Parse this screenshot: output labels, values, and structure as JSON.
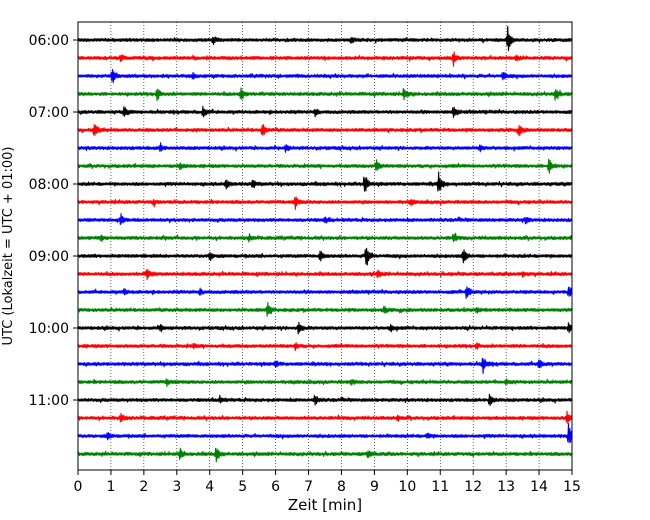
{
  "chart_data": {
    "type": "line",
    "title": "",
    "xlabel": "Zeit  [min]",
    "ylabel": "UTC (Lokalzeit = UTC + 01:00)",
    "xlim": [
      0,
      15
    ],
    "x_ticks": [
      "0",
      "1",
      "2",
      "3",
      "4",
      "5",
      "6",
      "7",
      "8",
      "9",
      "10",
      "11",
      "12",
      "13",
      "14",
      "15"
    ],
    "y_tick_labels": [
      "06:00",
      "07:00",
      "08:00",
      "09:00",
      "10:00",
      "11:00"
    ],
    "grid_x": true,
    "grid_y": false,
    "legend": "none",
    "trace_interval_minutes": 15,
    "start_time": "06:00",
    "trace_colors": [
      "#000000",
      "#ff0000",
      "#0000ff",
      "#008000"
    ],
    "traces": [
      {
        "start": "06:00",
        "color": "#000000",
        "events": [
          {
            "t": 13.05,
            "amp": 1.0
          },
          {
            "t": 4.1,
            "amp": 0.3
          },
          {
            "t": 8.3,
            "amp": 0.25
          }
        ]
      },
      {
        "start": "06:15",
        "color": "#ff0000",
        "events": [
          {
            "t": 11.4,
            "amp": 0.55
          },
          {
            "t": 1.3,
            "amp": 0.25
          },
          {
            "t": 13.3,
            "amp": 0.25
          }
        ]
      },
      {
        "start": "06:30",
        "color": "#0000ff",
        "events": [
          {
            "t": 1.05,
            "amp": 0.55
          },
          {
            "t": 12.9,
            "amp": 0.3
          },
          {
            "t": 3.5,
            "amp": 0.2
          }
        ]
      },
      {
        "start": "06:45",
        "color": "#008000",
        "events": [
          {
            "t": 2.4,
            "amp": 0.5
          },
          {
            "t": 4.95,
            "amp": 0.55
          },
          {
            "t": 9.9,
            "amp": 0.5
          },
          {
            "t": 14.5,
            "amp": 0.55
          }
        ]
      },
      {
        "start": "07:00",
        "color": "#000000",
        "events": [
          {
            "t": 11.4,
            "amp": 0.6
          },
          {
            "t": 1.4,
            "amp": 0.35
          },
          {
            "t": 3.8,
            "amp": 0.45
          },
          {
            "t": 7.2,
            "amp": 0.3
          }
        ]
      },
      {
        "start": "07:15",
        "color": "#ff0000",
        "events": [
          {
            "t": 0.5,
            "amp": 0.65
          },
          {
            "t": 5.6,
            "amp": 0.6
          },
          {
            "t": 13.4,
            "amp": 0.4
          }
        ]
      },
      {
        "start": "07:30",
        "color": "#0000ff",
        "events": [
          {
            "t": 2.5,
            "amp": 0.3
          },
          {
            "t": 6.3,
            "amp": 0.25
          },
          {
            "t": 12.2,
            "amp": 0.2
          }
        ]
      },
      {
        "start": "07:45",
        "color": "#008000",
        "events": [
          {
            "t": 9.05,
            "amp": 0.55
          },
          {
            "t": 14.3,
            "amp": 0.7
          },
          {
            "t": 3.1,
            "amp": 0.25
          }
        ]
      },
      {
        "start": "08:00",
        "color": "#000000",
        "events": [
          {
            "t": 8.7,
            "amp": 0.9
          },
          {
            "t": 10.95,
            "amp": 0.8
          },
          {
            "t": 4.5,
            "amp": 0.4
          },
          {
            "t": 5.3,
            "amp": 0.3
          }
        ]
      },
      {
        "start": "08:15",
        "color": "#ff0000",
        "events": [
          {
            "t": 6.6,
            "amp": 0.45
          },
          {
            "t": 10.1,
            "amp": 0.2
          },
          {
            "t": 2.3,
            "amp": 0.2
          }
        ]
      },
      {
        "start": "08:30",
        "color": "#0000ff",
        "events": [
          {
            "t": 1.3,
            "amp": 0.45
          },
          {
            "t": 13.6,
            "amp": 0.25
          },
          {
            "t": 7.5,
            "amp": 0.2
          }
        ]
      },
      {
        "start": "08:45",
        "color": "#008000",
        "events": [
          {
            "t": 11.4,
            "amp": 0.35
          },
          {
            "t": 5.2,
            "amp": 0.25
          },
          {
            "t": 0.7,
            "amp": 0.2
          }
        ]
      },
      {
        "start": "09:00",
        "color": "#000000",
        "events": [
          {
            "t": 8.75,
            "amp": 1.0
          },
          {
            "t": 11.7,
            "amp": 0.65
          },
          {
            "t": 7.35,
            "amp": 0.45
          },
          {
            "t": 4.0,
            "amp": 0.35
          }
        ]
      },
      {
        "start": "09:15",
        "color": "#ff0000",
        "events": [
          {
            "t": 2.1,
            "amp": 0.4
          },
          {
            "t": 9.1,
            "amp": 0.25
          },
          {
            "t": 13.5,
            "amp": 0.2
          }
        ]
      },
      {
        "start": "09:30",
        "color": "#0000ff",
        "events": [
          {
            "t": 11.8,
            "amp": 0.55
          },
          {
            "t": 14.9,
            "amp": 0.5
          },
          {
            "t": 3.7,
            "amp": 0.25
          },
          {
            "t": 1.4,
            "amp": 0.2
          }
        ]
      },
      {
        "start": "09:45",
        "color": "#008000",
        "events": [
          {
            "t": 5.75,
            "amp": 0.55
          },
          {
            "t": 9.3,
            "amp": 0.25
          },
          {
            "t": 12.1,
            "amp": 0.2
          }
        ]
      },
      {
        "start": "10:00",
        "color": "#000000",
        "events": [
          {
            "t": 6.7,
            "amp": 0.5
          },
          {
            "t": 2.5,
            "amp": 0.25
          },
          {
            "t": 14.9,
            "amp": 0.4
          },
          {
            "t": 9.5,
            "amp": 0.25
          }
        ]
      },
      {
        "start": "10:15",
        "color": "#ff0000",
        "events": [
          {
            "t": 6.6,
            "amp": 0.25
          },
          {
            "t": 12.1,
            "amp": 0.2
          },
          {
            "t": 3.5,
            "amp": 0.15
          }
        ]
      },
      {
        "start": "10:30",
        "color": "#0000ff",
        "events": [
          {
            "t": 12.3,
            "amp": 0.7
          },
          {
            "t": 14.0,
            "amp": 0.45
          },
          {
            "t": 6.0,
            "amp": 0.25
          }
        ]
      },
      {
        "start": "10:45",
        "color": "#008000",
        "events": [
          {
            "t": 2.7,
            "amp": 0.25
          },
          {
            "t": 8.3,
            "amp": 0.2
          },
          {
            "t": 13.0,
            "amp": 0.2
          }
        ]
      },
      {
        "start": "11:00",
        "color": "#000000",
        "events": [
          {
            "t": 12.5,
            "amp": 0.5
          },
          {
            "t": 7.2,
            "amp": 0.4
          },
          {
            "t": 4.3,
            "amp": 0.25
          }
        ]
      },
      {
        "start": "11:15",
        "color": "#ff0000",
        "events": [
          {
            "t": 1.3,
            "amp": 0.35
          },
          {
            "t": 14.85,
            "amp": 0.5
          },
          {
            "t": 9.7,
            "amp": 0.2
          }
        ]
      },
      {
        "start": "11:30",
        "color": "#0000ff",
        "events": [
          {
            "t": 14.9,
            "amp": 1.0
          },
          {
            "t": 0.9,
            "amp": 0.3
          },
          {
            "t": 10.6,
            "amp": 0.2
          }
        ]
      },
      {
        "start": "11:45",
        "color": "#008000",
        "events": [
          {
            "t": 4.2,
            "amp": 0.6
          },
          {
            "t": 3.1,
            "amp": 0.4
          },
          {
            "t": 8.8,
            "amp": 0.35
          }
        ]
      }
    ]
  }
}
